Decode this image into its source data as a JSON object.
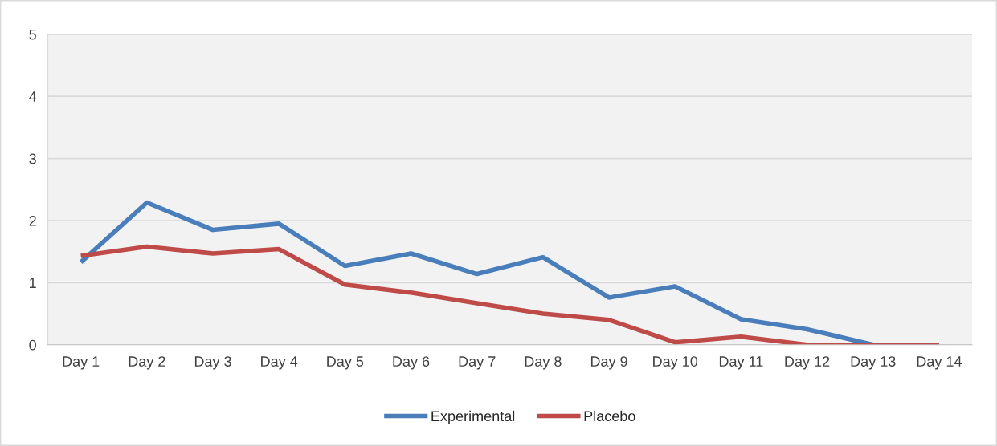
{
  "chart_data": {
    "type": "line",
    "categories": [
      "Day 1",
      "Day 2",
      "Day 3",
      "Day 4",
      "Day 5",
      "Day 6",
      "Day 7",
      "Day 8",
      "Day 9",
      "Day 10",
      "Day 11",
      "Day 12",
      "Day 13",
      "Day 14"
    ],
    "series": [
      {
        "name": "Experimental",
        "color": "#4a7ebb",
        "values": [
          1.33,
          2.29,
          1.85,
          1.95,
          1.27,
          1.47,
          1.14,
          1.41,
          0.76,
          0.94,
          0.41,
          0.25,
          0,
          0
        ]
      },
      {
        "name": "Placebo",
        "color": "#be4b48",
        "values": [
          1.43,
          1.58,
          1.47,
          1.54,
          0.97,
          0.84,
          0.67,
          0.5,
          0.4,
          0.04,
          0.13,
          0,
          0,
          0
        ]
      }
    ],
    "ylim": [
      0,
      5
    ],
    "yticks": [
      0,
      1,
      2,
      3,
      4,
      5
    ],
    "grid": "y",
    "legend": "bottom",
    "marker": "none",
    "line_style": "solid"
  }
}
